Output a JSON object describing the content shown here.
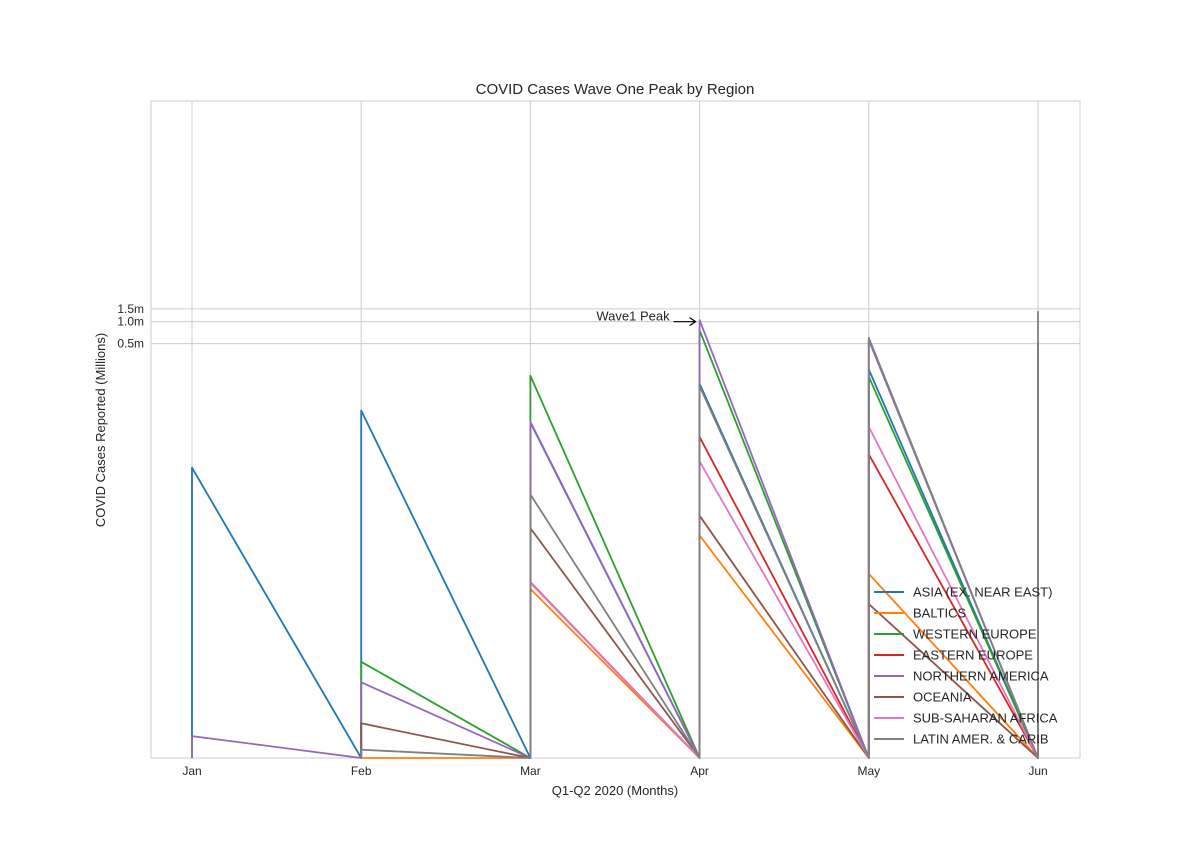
{
  "chart_data": {
    "type": "line",
    "title": "COVID Cases Wave One Peak by Region",
    "xlabel": "Q1-Q2 2020 (Months)",
    "ylabel": "COVID Cases Reported (Millions)",
    "categories": [
      "Jan",
      "Feb",
      "Mar",
      "Apr",
      "May",
      "Jun"
    ],
    "y_scale": "symlog",
    "y_ticks": [
      {
        "value": 500000,
        "label": "0.5m"
      },
      {
        "value": 1000000,
        "label": "1.0m"
      },
      {
        "value": 1500000,
        "label": "1.5m"
      }
    ],
    "ylim": [
      0,
      1500000
    ],
    "grid": true,
    "legend_position": "lower-right",
    "series": [
      {
        "name": "ASIA (EX. NEAR EAST)",
        "color": "#1f77b4",
        "values": [
          [
            0,
            9830
          ],
          [
            0,
            60000
          ],
          [
            0,
            41000
          ],
          [
            0,
            140000
          ],
          [
            0,
            220000
          ],
          [
            0,
            460000
          ]
        ]
      },
      {
        "name": "BALTICS",
        "color": "#ff7f0e",
        "values": [
          null,
          0,
          [
            0,
            210
          ],
          [
            0,
            1150
          ],
          [
            0,
            340
          ],
          [
            0,
            180
          ]
        ]
      },
      {
        "name": "WESTERN EUROPE",
        "color": "#2ca02c",
        "values": [
          null,
          [
            0,
            20
          ],
          [
            0,
            180000
          ],
          [
            0,
            760000
          ],
          [
            0,
            175000
          ],
          [
            0,
            105000
          ]
        ]
      },
      {
        "name": "EASTERN EUROPE",
        "color": "#d62728",
        "values": [
          null,
          null,
          [
            0,
            260
          ],
          [
            0,
            26000
          ],
          [
            0,
            15000
          ],
          [
            0,
            16500
          ]
        ]
      },
      {
        "name": "NORTHERN AMERICA",
        "color": "#9467bd",
        "values": [
          [
            0,
            1
          ],
          [
            0,
            10
          ],
          [
            0,
            42000
          ],
          [
            0,
            1050000
          ],
          [
            0,
            560000
          ],
          [
            0,
            520000
          ]
        ]
      },
      {
        "name": "OCEANIA",
        "color": "#8c564b",
        "values": [
          null,
          [
            0,
            2
          ],
          [
            0,
            1450
          ],
          [
            0,
            2150
          ],
          [
            0,
            130
          ],
          [
            0,
            128
          ]
        ]
      },
      {
        "name": "SUB-SAHARAN AFRICA",
        "color": "#e377c2",
        "values": [
          null,
          null,
          [
            0,
            255
          ],
          [
            0,
            12000
          ],
          [
            0,
            36000
          ],
          [
            0,
            85000
          ]
        ]
      },
      {
        "name": "LATIN AMER. & CARIB",
        "color": "#7f7f7f",
        "values": [
          null,
          [
            0,
            0.3
          ],
          [
            0,
            4200
          ],
          [
            0,
            130000
          ],
          [
            0,
            600000
          ],
          [
            0,
            1400000
          ]
        ]
      }
    ],
    "annotations": [
      {
        "text": "Wave1 Peak",
        "x": "Apr",
        "y": 1000000
      }
    ]
  }
}
